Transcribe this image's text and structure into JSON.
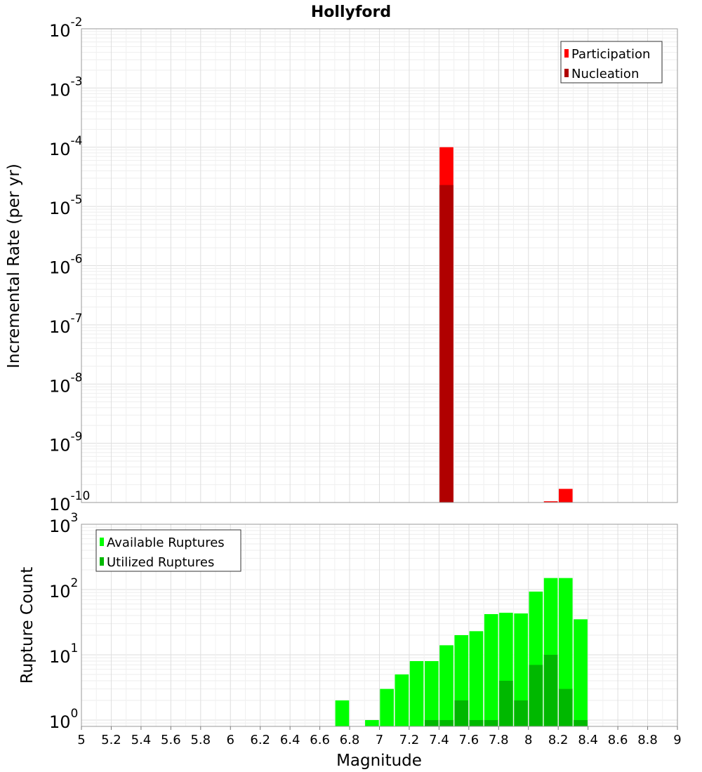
{
  "chart_data": [
    {
      "type": "bar",
      "title": "Hollyford",
      "ylabel": "Incremental Rate (per yr)",
      "y_scale": "log",
      "ylim": [
        1e-10,
        0.01
      ],
      "x_range": [
        5,
        9
      ],
      "legend_placement": "top-right",
      "grid": true,
      "y_ticks": [
        {
          "exp": "-2",
          "value": 0.01
        },
        {
          "exp": "-3",
          "value": 0.001
        },
        {
          "exp": "-4",
          "value": 0.0001
        },
        {
          "exp": "-5",
          "value": 1e-05
        },
        {
          "exp": "-6",
          "value": 1e-06
        },
        {
          "exp": "-7",
          "value": 1e-07
        },
        {
          "exp": "-8",
          "value": 1e-08
        },
        {
          "exp": "-9",
          "value": 1e-09
        },
        {
          "exp": "-10",
          "value": 1e-10
        }
      ],
      "series": [
        {
          "name": "Participation",
          "color": "#ff0000",
          "points": [
            {
              "x": 7.45,
              "y": 0.0001
            },
            {
              "x": 8.15,
              "y": 1.05e-10
            },
            {
              "x": 8.25,
              "y": 1.7e-10
            }
          ]
        },
        {
          "name": "Nucleation",
          "color": "#b00000",
          "points": [
            {
              "x": 7.45,
              "y": 2.3e-05
            }
          ]
        }
      ]
    },
    {
      "type": "bar",
      "ylabel": "Rupture Count",
      "xlabel": "Magnitude",
      "y_scale": "log",
      "ylim": [
        0.8,
        1000
      ],
      "x_range": [
        5,
        9
      ],
      "legend_placement": "top-left",
      "grid": true,
      "y_ticks": [
        {
          "exp": "3",
          "value": 1000
        },
        {
          "exp": "2",
          "value": 100
        },
        {
          "exp": "1",
          "value": 10
        },
        {
          "exp": "0",
          "value": 1
        }
      ],
      "x_ticks": [
        "5",
        "5.2",
        "5.4",
        "5.6",
        "5.8",
        "6",
        "6.2",
        "6.4",
        "6.6",
        "6.8",
        "7",
        "7.2",
        "7.4",
        "7.6",
        "7.8",
        "8",
        "8.2",
        "8.4",
        "8.6",
        "8.8",
        "9"
      ],
      "series": [
        {
          "name": "Available Ruptures",
          "color": "#00ff00",
          "points": [
            {
              "x": 6.75,
              "y": 2
            },
            {
              "x": 6.95,
              "y": 1
            },
            {
              "x": 7.05,
              "y": 3
            },
            {
              "x": 7.15,
              "y": 5
            },
            {
              "x": 7.25,
              "y": 8
            },
            {
              "x": 7.35,
              "y": 8
            },
            {
              "x": 7.45,
              "y": 14
            },
            {
              "x": 7.55,
              "y": 20
            },
            {
              "x": 7.65,
              "y": 23
            },
            {
              "x": 7.75,
              "y": 42
            },
            {
              "x": 7.85,
              "y": 44
            },
            {
              "x": 7.95,
              "y": 43
            },
            {
              "x": 8.05,
              "y": 93
            },
            {
              "x": 8.15,
              "y": 150
            },
            {
              "x": 8.25,
              "y": 150
            },
            {
              "x": 8.35,
              "y": 35
            }
          ]
        },
        {
          "name": "Utilized Ruptures",
          "color": "#00b800",
          "points": [
            {
              "x": 7.35,
              "y": 1
            },
            {
              "x": 7.45,
              "y": 1
            },
            {
              "x": 7.55,
              "y": 2
            },
            {
              "x": 7.65,
              "y": 1
            },
            {
              "x": 7.75,
              "y": 1
            },
            {
              "x": 7.85,
              "y": 4
            },
            {
              "x": 7.95,
              "y": 2
            },
            {
              "x": 8.05,
              "y": 7
            },
            {
              "x": 8.15,
              "y": 10
            },
            {
              "x": 8.25,
              "y": 3
            },
            {
              "x": 8.35,
              "y": 1
            }
          ]
        }
      ]
    }
  ]
}
